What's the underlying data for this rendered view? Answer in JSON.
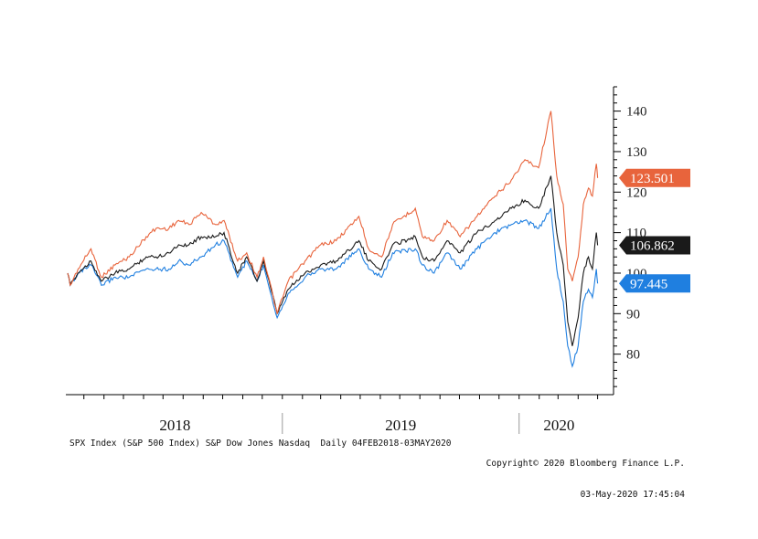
{
  "chart_data": {
    "type": "line",
    "title": "",
    "x_range": [
      "2018-02-04",
      "2020-05-03"
    ],
    "y_range": [
      70,
      146
    ],
    "y_ticks": [
      80,
      90,
      100,
      110,
      120,
      130,
      140
    ],
    "y_tick_labels": [
      "80",
      "90",
      "100",
      "110",
      "120",
      "130",
      "140"
    ],
    "year_labels": [
      "2018",
      "2019",
      "2020"
    ],
    "grid": false,
    "series": [
      {
        "name": "Nasdaq",
        "color": "#e8643c",
        "last_value": "123.501",
        "points": [
          [
            "2018-02-04",
            100
          ],
          [
            "2018-02-08",
            97
          ],
          [
            "2018-02-20",
            101
          ],
          [
            "2018-03-12",
            106
          ],
          [
            "2018-03-28",
            99
          ],
          [
            "2018-04-18",
            102
          ],
          [
            "2018-05-10",
            104
          ],
          [
            "2018-06-05",
            109
          ],
          [
            "2018-06-20",
            111
          ],
          [
            "2018-07-10",
            111
          ],
          [
            "2018-07-25",
            113
          ],
          [
            "2018-08-10",
            112
          ],
          [
            "2018-08-29",
            115
          ],
          [
            "2018-09-20",
            112
          ],
          [
            "2018-10-03",
            113
          ],
          [
            "2018-10-24",
            103
          ],
          [
            "2018-11-07",
            105
          ],
          [
            "2018-11-23",
            99
          ],
          [
            "2018-12-03",
            104
          ],
          [
            "2018-12-24",
            90
          ],
          [
            "2019-01-10",
            98
          ],
          [
            "2019-02-05",
            103
          ],
          [
            "2019-03-01",
            107
          ],
          [
            "2019-03-25",
            108
          ],
          [
            "2019-04-29",
            114
          ],
          [
            "2019-05-14",
            106
          ],
          [
            "2019-06-03",
            104
          ],
          [
            "2019-06-20",
            112
          ],
          [
            "2019-07-25",
            116
          ],
          [
            "2019-08-05",
            109
          ],
          [
            "2019-08-23",
            108
          ],
          [
            "2019-09-12",
            113
          ],
          [
            "2019-10-02",
            109
          ],
          [
            "2019-10-28",
            114
          ],
          [
            "2019-11-25",
            119
          ],
          [
            "2019-12-20",
            123
          ],
          [
            "2020-01-10",
            128
          ],
          [
            "2020-01-31",
            126
          ],
          [
            "2020-02-19",
            140
          ],
          [
            "2020-02-28",
            124
          ],
          [
            "2020-03-09",
            117
          ],
          [
            "2020-03-16",
            101
          ],
          [
            "2020-03-23",
            98
          ],
          [
            "2020-04-01",
            104
          ],
          [
            "2020-04-09",
            117
          ],
          [
            "2020-04-17",
            121
          ],
          [
            "2020-04-23",
            119
          ],
          [
            "2020-04-29",
            127
          ],
          [
            "2020-05-01",
            123.501
          ]
        ]
      },
      {
        "name": "S&P 500 Index",
        "color": "#1a1a1a",
        "last_value": "106.862",
        "points": [
          [
            "2018-02-04",
            100
          ],
          [
            "2018-02-08",
            97
          ],
          [
            "2018-02-20",
            100
          ],
          [
            "2018-03-12",
            103
          ],
          [
            "2018-03-28",
            98
          ],
          [
            "2018-04-18",
            100
          ],
          [
            "2018-05-10",
            101
          ],
          [
            "2018-06-05",
            104
          ],
          [
            "2018-06-20",
            104
          ],
          [
            "2018-07-10",
            105
          ],
          [
            "2018-07-25",
            107
          ],
          [
            "2018-08-10",
            107
          ],
          [
            "2018-08-29",
            109
          ],
          [
            "2018-09-20",
            109
          ],
          [
            "2018-10-03",
            110
          ],
          [
            "2018-10-24",
            100
          ],
          [
            "2018-11-07",
            104
          ],
          [
            "2018-11-23",
            98
          ],
          [
            "2018-12-03",
            103
          ],
          [
            "2018-12-24",
            90
          ],
          [
            "2019-01-10",
            96
          ],
          [
            "2019-02-05",
            100
          ],
          [
            "2019-03-01",
            102
          ],
          [
            "2019-03-25",
            103
          ],
          [
            "2019-04-29",
            108
          ],
          [
            "2019-05-14",
            103
          ],
          [
            "2019-06-03",
            101
          ],
          [
            "2019-06-20",
            107
          ],
          [
            "2019-07-25",
            109
          ],
          [
            "2019-08-05",
            104
          ],
          [
            "2019-08-23",
            103
          ],
          [
            "2019-09-12",
            108
          ],
          [
            "2019-10-02",
            105
          ],
          [
            "2019-10-28",
            110
          ],
          [
            "2019-11-25",
            113
          ],
          [
            "2019-12-20",
            116
          ],
          [
            "2020-01-10",
            118
          ],
          [
            "2020-01-31",
            116
          ],
          [
            "2020-02-19",
            124
          ],
          [
            "2020-02-28",
            110
          ],
          [
            "2020-03-09",
            102
          ],
          [
            "2020-03-16",
            88
          ],
          [
            "2020-03-23",
            82
          ],
          [
            "2020-04-01",
            89
          ],
          [
            "2020-04-09",
            100
          ],
          [
            "2020-04-17",
            104
          ],
          [
            "2020-04-23",
            101
          ],
          [
            "2020-04-29",
            110
          ],
          [
            "2020-05-01",
            106.862
          ]
        ]
      },
      {
        "name": "Dow Jones",
        "color": "#1f7fe0",
        "last_value": "97.445",
        "points": [
          [
            "2018-02-04",
            100
          ],
          [
            "2018-02-08",
            97
          ],
          [
            "2018-02-20",
            100
          ],
          [
            "2018-03-12",
            102
          ],
          [
            "2018-03-28",
            97
          ],
          [
            "2018-04-18",
            99
          ],
          [
            "2018-05-10",
            99
          ],
          [
            "2018-06-05",
            101
          ],
          [
            "2018-06-20",
            101
          ],
          [
            "2018-07-10",
            101
          ],
          [
            "2018-07-25",
            103
          ],
          [
            "2018-08-10",
            102
          ],
          [
            "2018-08-29",
            104
          ],
          [
            "2018-09-20",
            107
          ],
          [
            "2018-10-03",
            108
          ],
          [
            "2018-10-24",
            99
          ],
          [
            "2018-11-07",
            103
          ],
          [
            "2018-11-23",
            98
          ],
          [
            "2018-12-03",
            102
          ],
          [
            "2018-12-24",
            89
          ],
          [
            "2019-01-10",
            95
          ],
          [
            "2019-02-05",
            99
          ],
          [
            "2019-03-01",
            101
          ],
          [
            "2019-03-25",
            101
          ],
          [
            "2019-04-29",
            106
          ],
          [
            "2019-05-14",
            101
          ],
          [
            "2019-06-03",
            99
          ],
          [
            "2019-06-20",
            105
          ],
          [
            "2019-07-25",
            106
          ],
          [
            "2019-08-05",
            102
          ],
          [
            "2019-08-23",
            100
          ],
          [
            "2019-09-12",
            105
          ],
          [
            "2019-10-02",
            101
          ],
          [
            "2019-10-28",
            106
          ],
          [
            "2019-11-25",
            110
          ],
          [
            "2019-12-20",
            112
          ],
          [
            "2020-01-10",
            113
          ],
          [
            "2020-01-31",
            111
          ],
          [
            "2020-02-19",
            116
          ],
          [
            "2020-02-28",
            101
          ],
          [
            "2020-03-09",
            93
          ],
          [
            "2020-03-16",
            82
          ],
          [
            "2020-03-23",
            77
          ],
          [
            "2020-04-01",
            82
          ],
          [
            "2020-04-09",
            93
          ],
          [
            "2020-04-17",
            96
          ],
          [
            "2020-04-23",
            94
          ],
          [
            "2020-04-29",
            101
          ],
          [
            "2020-05-01",
            97.445
          ]
        ]
      }
    ]
  },
  "footer": {
    "left": "SPX Index (S&P 500 Index) S&P Dow Jones Nasdaq  Daily 04FEB2018-03MAY2020",
    "right_line1": "Copyright© 2020 Bloomberg Finance L.P.",
    "right_line2": "03-May-2020 17:45:04"
  }
}
